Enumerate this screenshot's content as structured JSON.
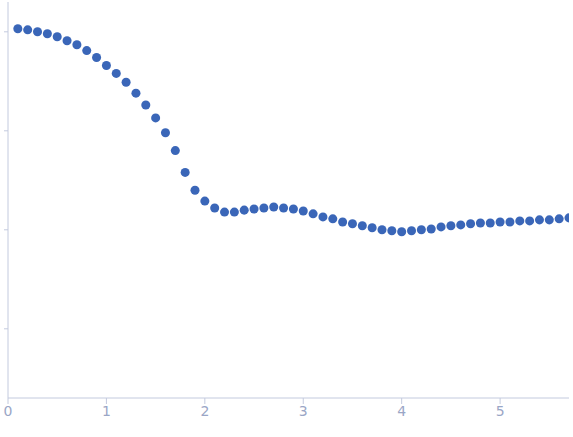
{
  "chart_data": {
    "type": "scatter",
    "x": [
      0.1,
      0.2,
      0.3,
      0.4,
      0.5,
      0.6,
      0.7,
      0.8,
      0.9,
      1.0,
      1.1,
      1.2,
      1.3,
      1.4,
      1.5,
      1.6,
      1.7,
      1.8,
      1.9,
      2.0,
      2.1,
      2.2,
      2.3,
      2.4,
      2.5,
      2.6,
      2.7,
      2.8,
      2.9,
      3.0,
      3.1,
      3.2,
      3.3,
      3.4,
      3.5,
      3.6,
      3.7,
      3.8,
      3.9,
      4.0,
      4.1,
      4.2,
      4.3,
      4.4,
      4.5,
      4.6,
      4.7,
      4.8,
      4.9,
      5.0,
      5.1,
      5.2,
      5.3,
      5.4,
      5.5,
      5.6,
      5.7
    ],
    "values": [
      1.072,
      1.047,
      1.0,
      0.955,
      0.891,
      0.813,
      0.741,
      0.646,
      0.55,
      0.457,
      0.38,
      0.309,
      0.24,
      0.182,
      0.135,
      0.0955,
      0.0631,
      0.038,
      0.0251,
      0.0195,
      0.0166,
      0.0151,
      0.0151,
      0.0158,
      0.0162,
      0.0166,
      0.017,
      0.0166,
      0.0162,
      0.0155,
      0.0145,
      0.0135,
      0.0129,
      0.012,
      0.0115,
      0.011,
      0.0105,
      0.01,
      0.00977,
      0.00955,
      0.00977,
      0.01,
      0.0102,
      0.0107,
      0.011,
      0.0112,
      0.0115,
      0.0117,
      0.0117,
      0.012,
      0.012,
      0.0123,
      0.0123,
      0.0126,
      0.0126,
      0.0129,
      0.0132
    ],
    "color": "#3a66b8",
    "marker": "circle",
    "log": "y",
    "xlim": [
      0,
      5.7
    ],
    "xticks": [
      0,
      1,
      2,
      3,
      4,
      5
    ],
    "ylim": [
      0.0002,
      2
    ],
    "yticks": [
      0.001,
      0.01,
      0.1,
      1
    ],
    "tick_labels": "x",
    "grid": false
  }
}
